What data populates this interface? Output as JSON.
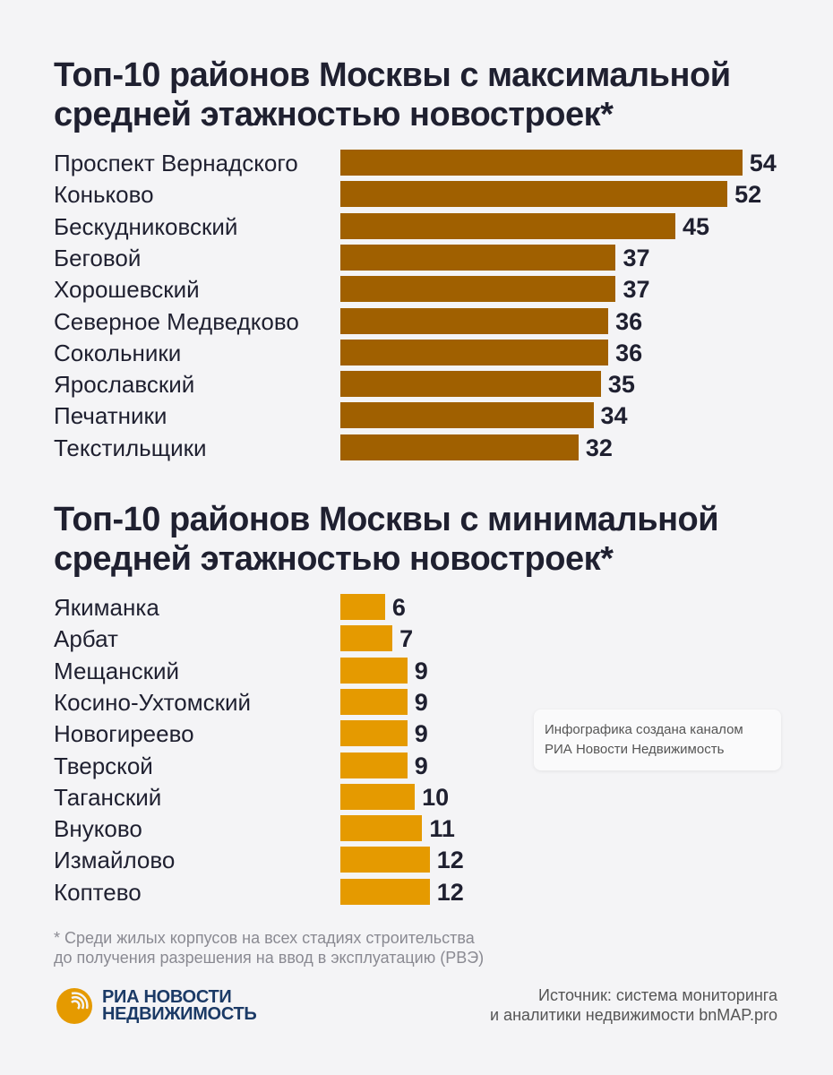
{
  "chart_data": [
    {
      "type": "bar",
      "orientation": "horizontal",
      "title": "Топ-10 районов Москвы с максимальной средней этажностью новостроек*",
      "categories": [
        "Проспект Вернадского",
        "Коньково",
        "Бескудниковский",
        "Беговой",
        "Хорошевский",
        "Северное Медведково",
        "Сокольники",
        "Ярославский",
        "Печатники",
        "Текстильщики"
      ],
      "values": [
        54,
        52,
        45,
        37,
        37,
        36,
        36,
        35,
        34,
        32
      ],
      "color": "#a06000",
      "data_labels": true,
      "grid": false
    },
    {
      "type": "bar",
      "orientation": "horizontal",
      "title": "Топ-10 районов Москвы с минимальной средней этажностью новостроек*",
      "categories": [
        "Якиманка",
        "Арбат",
        "Мещанский",
        "Косино-Ухтомский",
        "Новогиреево",
        "Тверской",
        "Таганский",
        "Внуково",
        "Измайлово",
        "Коптево"
      ],
      "values": [
        6,
        7,
        9,
        9,
        9,
        9,
        10,
        11,
        12,
        12
      ],
      "color": "#e59a00",
      "data_labels": true,
      "grid": false
    }
  ],
  "note": {
    "line1": "Инфографика создана каналом",
    "line2": "РИА Новости Недвижимость"
  },
  "footnote": {
    "line1": "* Среди жилых корпусов на всех стадиях строительства",
    "line2": "до получения разрешения на ввод в эксплуатацию (РВЭ)"
  },
  "source": {
    "line1": "Источник: система мониторинга",
    "line2": "и аналитики недвижимости bnMAP.pro"
  },
  "logo": {
    "line1": "РИА НОВОСТИ",
    "line2": "НЕДВИЖИМОСТЬ",
    "color": "#1b3a66",
    "accent": "#e59a00"
  }
}
